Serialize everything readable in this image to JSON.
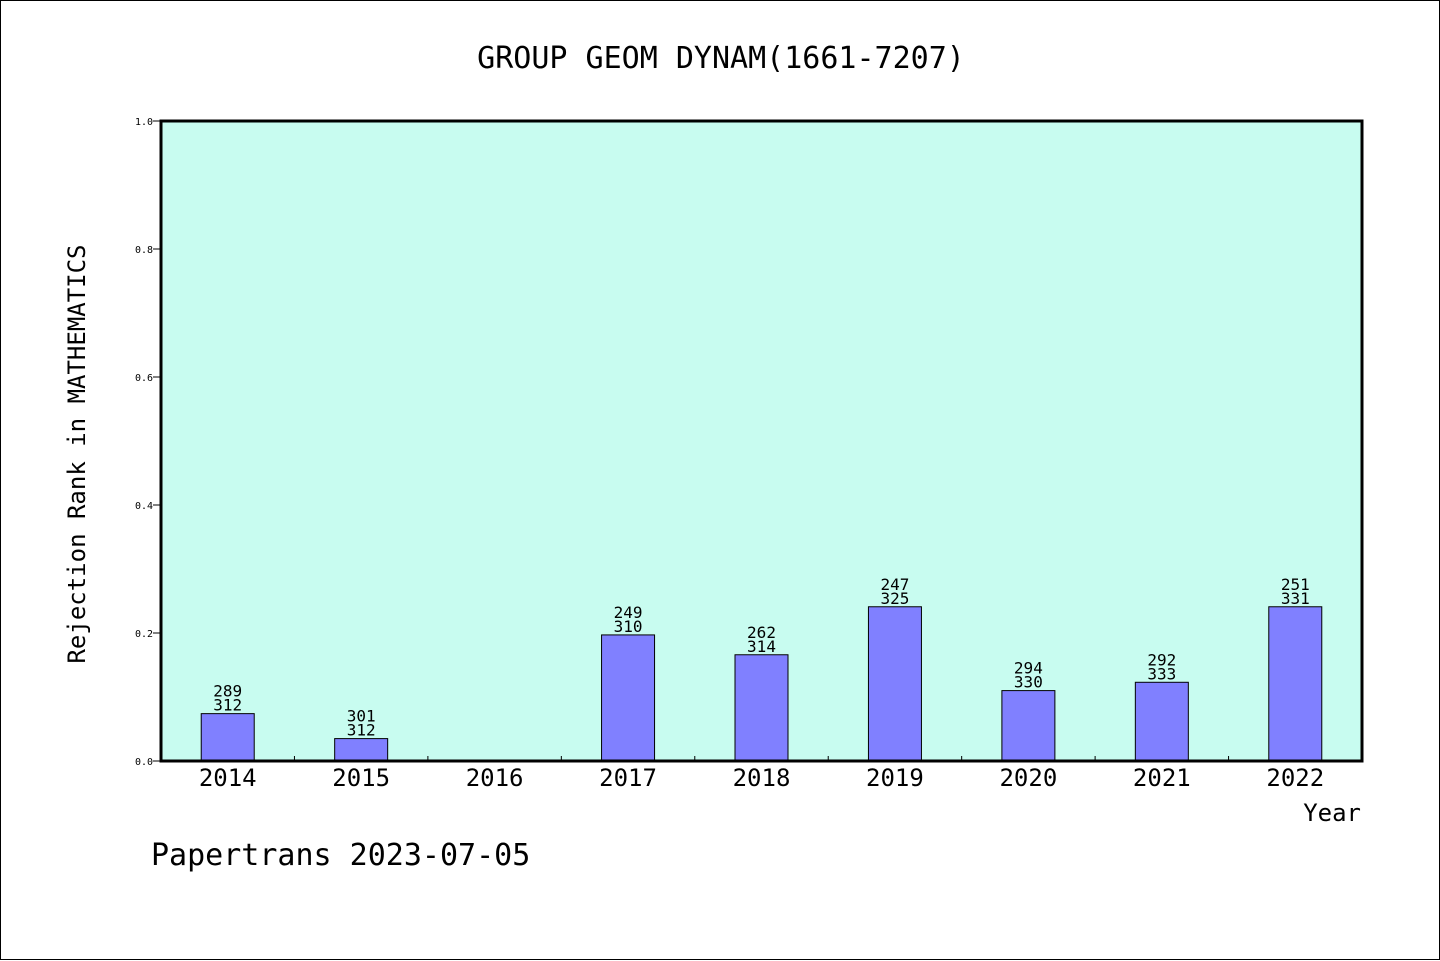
{
  "chart_data": {
    "type": "bar",
    "title": "GROUP GEOM DYNAM(1661-7207)",
    "xlabel": "Year",
    "ylabel": "Rejection Rank in MATHEMATICS",
    "ylim": [
      0,
      1.0
    ],
    "yticks": [
      "0.0",
      "0.2",
      "0.4",
      "0.6",
      "0.8",
      "1.0"
    ],
    "categories": [
      "2014",
      "2015",
      "2016",
      "2017",
      "2018",
      "2019",
      "2020",
      "2021",
      "2022"
    ],
    "values": [
      0.074,
      0.035,
      null,
      0.197,
      0.166,
      0.241,
      0.11,
      0.123,
      0.241
    ],
    "rank_labels": [
      "289",
      "301",
      "",
      "249",
      "262",
      "247",
      "294",
      "292",
      "251"
    ],
    "total_labels": [
      "312",
      "312",
      "",
      "310",
      "314",
      "325",
      "330",
      "333",
      "331"
    ],
    "grid": false,
    "legend": "none",
    "colors": {
      "plot_background": "#c8fcf0",
      "bar_fill": "#8080ff",
      "bar_stroke": "#000000"
    }
  },
  "footer": {
    "credit": "Papertrans 2023-07-05"
  }
}
